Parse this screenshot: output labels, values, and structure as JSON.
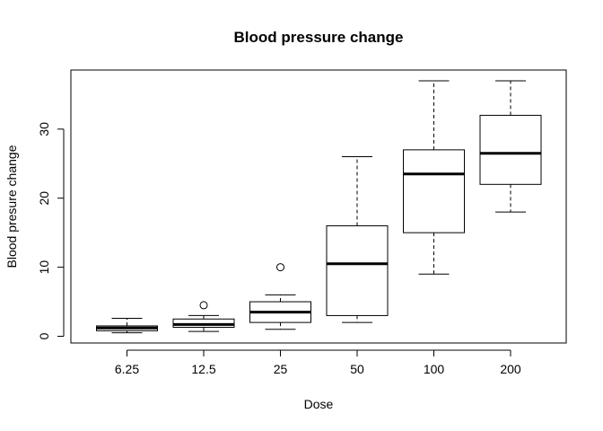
{
  "chart_data": {
    "type": "boxplot",
    "title": "Blood pressure change",
    "xlabel": "Dose",
    "ylabel": "Blood presure change",
    "categories": [
      "6.25",
      "12.5",
      "25",
      "50",
      "100",
      "200"
    ],
    "ylim": [
      -1,
      38
    ],
    "yticks": [
      0,
      10,
      20,
      30
    ],
    "grid": false,
    "boxes": [
      {
        "category": "6.25",
        "whisker_low": 0.5,
        "q1": 0.8,
        "median": 1.2,
        "q3": 1.5,
        "whisker_high": 2.6,
        "outliers": []
      },
      {
        "category": "12.5",
        "whisker_low": 0.7,
        "q1": 1.3,
        "median": 1.7,
        "q3": 2.5,
        "whisker_high": 3.0,
        "outliers": [
          4.5
        ]
      },
      {
        "category": "25",
        "whisker_low": 1.0,
        "q1": 2.0,
        "median": 3.5,
        "q3": 5.0,
        "whisker_high": 6.0,
        "outliers": [
          10
        ]
      },
      {
        "category": "50",
        "whisker_low": 2.0,
        "q1": 3.0,
        "median": 10.5,
        "q3": 16.0,
        "whisker_high": 26.0,
        "outliers": []
      },
      {
        "category": "100",
        "whisker_low": 9.0,
        "q1": 15.0,
        "median": 23.5,
        "q3": 27.0,
        "whisker_high": 37.0,
        "outliers": []
      },
      {
        "category": "200",
        "whisker_low": 18.0,
        "q1": 22.0,
        "median": 26.5,
        "q3": 32.0,
        "whisker_high": 37.0,
        "outliers": []
      }
    ]
  }
}
